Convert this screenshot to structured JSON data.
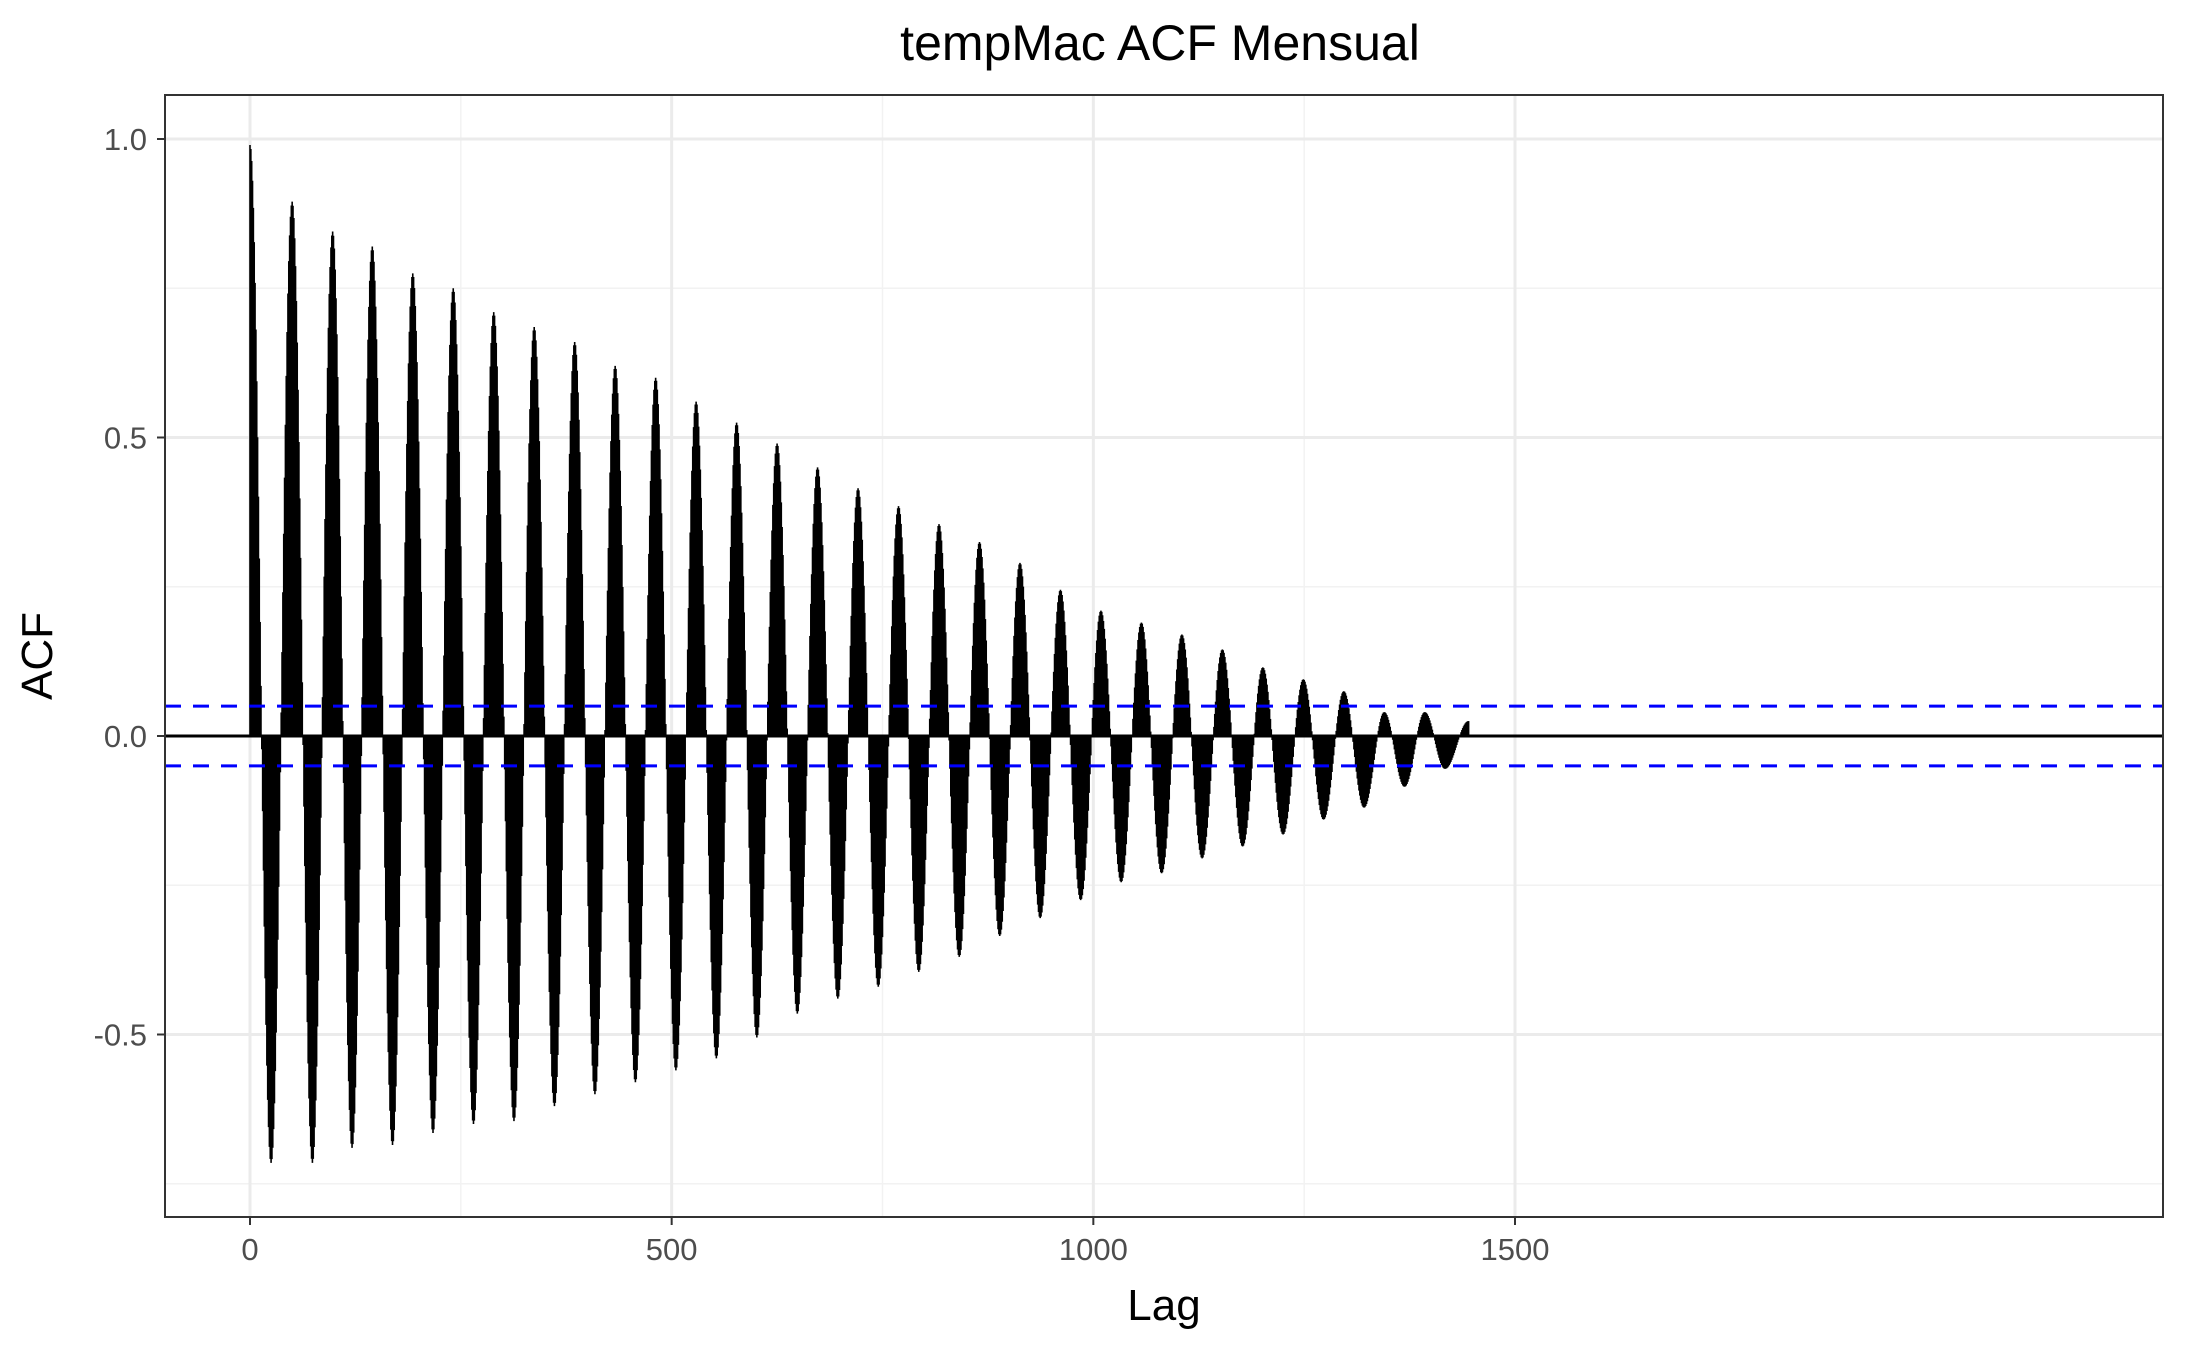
{
  "chart_data": {
    "type": "bar",
    "title": "tempMac ACF Mensual",
    "xlabel": "Lag",
    "ylabel": "ACF",
    "xlim": [
      -68,
      1508
    ],
    "ylim": [
      -0.8,
      1.075
    ],
    "x_ticks": [
      0,
      500,
      1000,
      1500
    ],
    "y_ticks": [
      -0.5,
      0.0,
      0.5,
      1.0
    ],
    "x_tick_labels": [
      "0",
      "500",
      "1000",
      "1500"
    ],
    "y_tick_labels": [
      "-0.5",
      "0.0",
      "0.5",
      "1.0"
    ],
    "grid": true,
    "confidence_band": 0.05,
    "lag_range": [
      0,
      1445
    ],
    "period": 50,
    "peaks": [
      {
        "lag": 0,
        "acf": 0.99
      },
      {
        "lag": 50,
        "acf": 0.895
      },
      {
        "lag": 98,
        "acf": 0.845
      },
      {
        "lag": 145,
        "acf": 0.82
      },
      {
        "lag": 193,
        "acf": 0.775
      },
      {
        "lag": 241,
        "acf": 0.75
      },
      {
        "lag": 289,
        "acf": 0.71
      },
      {
        "lag": 337,
        "acf": 0.685
      },
      {
        "lag": 385,
        "acf": 0.66
      },
      {
        "lag": 433,
        "acf": 0.62
      },
      {
        "lag": 481,
        "acf": 0.6
      },
      {
        "lag": 529,
        "acf": 0.56
      },
      {
        "lag": 577,
        "acf": 0.525
      },
      {
        "lag": 625,
        "acf": 0.49
      },
      {
        "lag": 673,
        "acf": 0.45
      },
      {
        "lag": 721,
        "acf": 0.415
      },
      {
        "lag": 769,
        "acf": 0.385
      },
      {
        "lag": 817,
        "acf": 0.355
      },
      {
        "lag": 865,
        "acf": 0.325
      },
      {
        "lag": 913,
        "acf": 0.29
      },
      {
        "lag": 961,
        "acf": 0.245
      },
      {
        "lag": 1009,
        "acf": 0.21
      },
      {
        "lag": 1057,
        "acf": 0.19
      },
      {
        "lag": 1105,
        "acf": 0.17
      },
      {
        "lag": 1153,
        "acf": 0.145
      },
      {
        "lag": 1201,
        "acf": 0.115
      },
      {
        "lag": 1249,
        "acf": 0.095
      },
      {
        "lag": 1297,
        "acf": 0.075
      },
      {
        "lag": 1345,
        "acf": 0.04
      },
      {
        "lag": 1393,
        "acf": 0.04
      }
    ],
    "troughs": [
      {
        "lag": 25,
        "acf": -0.715
      },
      {
        "lag": 74,
        "acf": -0.715
      },
      {
        "lag": 121,
        "acf": -0.69
      },
      {
        "lag": 169,
        "acf": -0.685
      },
      {
        "lag": 217,
        "acf": -0.665
      },
      {
        "lag": 265,
        "acf": -0.65
      },
      {
        "lag": 313,
        "acf": -0.645
      },
      {
        "lag": 361,
        "acf": -0.62
      },
      {
        "lag": 409,
        "acf": -0.6
      },
      {
        "lag": 457,
        "acf": -0.58
      },
      {
        "lag": 505,
        "acf": -0.56
      },
      {
        "lag": 553,
        "acf": -0.54
      },
      {
        "lag": 601,
        "acf": -0.505
      },
      {
        "lag": 649,
        "acf": -0.465
      },
      {
        "lag": 697,
        "acf": -0.44
      },
      {
        "lag": 745,
        "acf": -0.42
      },
      {
        "lag": 793,
        "acf": -0.395
      },
      {
        "lag": 841,
        "acf": -0.37
      },
      {
        "lag": 889,
        "acf": -0.335
      },
      {
        "lag": 937,
        "acf": -0.305
      },
      {
        "lag": 985,
        "acf": -0.275
      },
      {
        "lag": 1033,
        "acf": -0.245
      },
      {
        "lag": 1081,
        "acf": -0.23
      },
      {
        "lag": 1129,
        "acf": -0.205
      },
      {
        "lag": 1177,
        "acf": -0.185
      },
      {
        "lag": 1225,
        "acf": -0.165
      },
      {
        "lag": 1273,
        "acf": -0.14
      },
      {
        "lag": 1321,
        "acf": -0.12
      },
      {
        "lag": 1369,
        "acf": -0.085
      },
      {
        "lag": 1417,
        "acf": -0.055
      }
    ],
    "last_lag_acf": 0.025
  }
}
